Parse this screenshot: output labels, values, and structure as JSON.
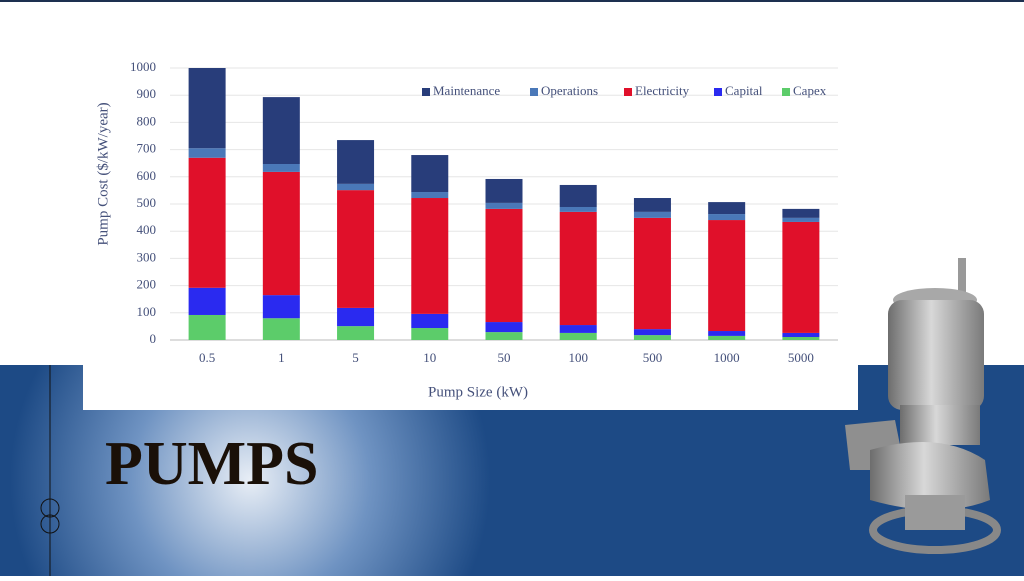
{
  "slide": {
    "title": "PUMPS"
  },
  "chart_data": {
    "type": "stacked-bar",
    "y_label": "Pump Cost ($/kW/year)",
    "x_label": "Pump Size (kW)",
    "categories": [
      "0.5",
      "1",
      "5",
      "10",
      "50",
      "100",
      "500",
      "1000",
      "5000"
    ],
    "series": [
      {
        "name": "Capex",
        "color": "#5ccc6a",
        "values": [
          92,
          80,
          51,
          44,
          29,
          26,
          18,
          15,
          11
        ]
      },
      {
        "name": "Capital",
        "color": "#2a2af0",
        "values": [
          100,
          85,
          67,
          52,
          37,
          29,
          22,
          18,
          15
        ]
      },
      {
        "name": "Electricity",
        "color": "#e0102a",
        "values": [
          478,
          453,
          433,
          426,
          416,
          416,
          409,
          408,
          408
        ]
      },
      {
        "name": "Operations",
        "color": "#4a78b8",
        "values": [
          35,
          29,
          23,
          22,
          22,
          18,
          22,
          22,
          15
        ]
      },
      {
        "name": "Maintenance",
        "color": "#283d7a",
        "values": [
          295,
          246,
          161,
          136,
          88,
          81,
          51,
          44,
          33
        ]
      }
    ],
    "ylim": [
      0,
      1000
    ],
    "yticks": [
      0,
      100,
      200,
      300,
      400,
      500,
      600,
      700,
      800,
      900,
      1000
    ],
    "grid": true,
    "legend": "top-right"
  }
}
